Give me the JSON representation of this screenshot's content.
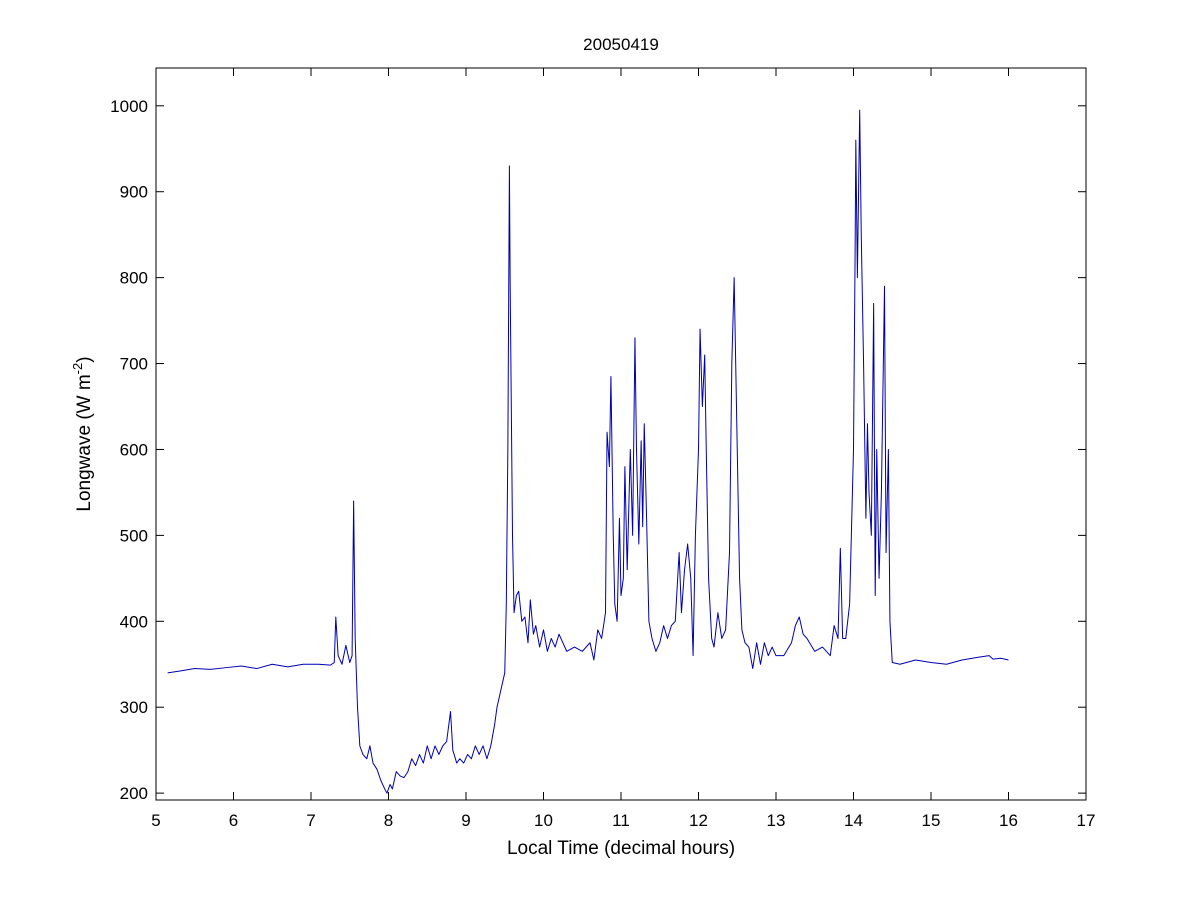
{
  "chart_data": {
    "type": "line",
    "title": "20050419",
    "xlabel": "Local Time (decimal hours)",
    "ylabel": [
      "Longwave (W m",
      "-2",
      ")"
    ],
    "x": [
      5.15,
      5.3,
      5.5,
      5.7,
      5.9,
      6.1,
      6.3,
      6.5,
      6.7,
      6.9,
      7.1,
      7.25,
      7.3,
      7.32,
      7.35,
      7.4,
      7.45,
      7.5,
      7.53,
      7.55,
      7.57,
      7.6,
      7.63,
      7.67,
      7.72,
      7.76,
      7.8,
      7.85,
      7.9,
      7.95,
      7.98,
      8.02,
      8.05,
      8.1,
      8.15,
      8.2,
      8.25,
      8.3,
      8.35,
      8.4,
      8.45,
      8.5,
      8.55,
      8.6,
      8.65,
      8.7,
      8.75,
      8.8,
      8.83,
      8.88,
      8.92,
      8.97,
      9.02,
      9.07,
      9.12,
      9.17,
      9.22,
      9.27,
      9.32,
      9.37,
      9.4,
      9.45,
      9.5,
      9.52,
      9.54,
      9.56,
      9.57,
      9.6,
      9.62,
      9.65,
      9.68,
      9.72,
      9.76,
      9.8,
      9.83,
      9.87,
      9.9,
      9.95,
      10.0,
      10.05,
      10.1,
      10.15,
      10.2,
      10.3,
      10.4,
      10.5,
      10.6,
      10.65,
      10.7,
      10.75,
      10.8,
      10.82,
      10.85,
      10.87,
      10.9,
      10.92,
      10.95,
      10.98,
      11.0,
      11.03,
      11.05,
      11.08,
      11.12,
      11.15,
      11.18,
      11.2,
      11.23,
      11.26,
      11.28,
      11.3,
      11.33,
      11.36,
      11.4,
      11.45,
      11.5,
      11.55,
      11.6,
      11.65,
      11.7,
      11.75,
      11.78,
      11.82,
      11.86,
      11.9,
      11.93,
      11.96,
      12.0,
      12.02,
      12.05,
      12.08,
      12.1,
      12.13,
      12.17,
      12.2,
      12.25,
      12.3,
      12.35,
      12.4,
      12.43,
      12.46,
      12.5,
      12.53,
      12.56,
      12.6,
      12.65,
      12.7,
      12.75,
      12.8,
      12.85,
      12.9,
      12.95,
      13.0,
      13.1,
      13.2,
      13.25,
      13.3,
      13.35,
      13.4,
      13.5,
      13.6,
      13.7,
      13.75,
      13.8,
      13.83,
      13.86,
      13.9,
      13.95,
      14.0,
      14.02,
      14.03,
      14.05,
      14.08,
      14.1,
      14.13,
      14.16,
      14.18,
      14.2,
      14.23,
      14.26,
      14.28,
      14.3,
      14.33,
      14.36,
      14.4,
      14.42,
      14.45,
      14.47,
      14.5,
      14.6,
      14.8,
      15.0,
      15.2,
      15.4,
      15.6,
      15.75,
      15.8,
      15.9,
      16.0
    ],
    "series": [
      {
        "color": "#0000b0",
        "values": [
          340,
          342,
          345,
          344,
          346,
          348,
          345,
          350,
          347,
          350,
          350,
          349,
          352,
          405,
          360,
          350,
          372,
          352,
          360,
          540,
          380,
          300,
          255,
          245,
          240,
          255,
          235,
          228,
          215,
          205,
          200,
          210,
          205,
          225,
          220,
          218,
          225,
          240,
          232,
          245,
          235,
          255,
          240,
          255,
          245,
          255,
          260,
          295,
          250,
          235,
          240,
          235,
          245,
          240,
          255,
          245,
          255,
          240,
          255,
          280,
          300,
          320,
          340,
          420,
          600,
          930,
          790,
          500,
          410,
          430,
          435,
          400,
          405,
          375,
          425,
          385,
          395,
          370,
          390,
          365,
          380,
          370,
          385,
          365,
          370,
          365,
          375,
          355,
          390,
          380,
          410,
          620,
          580,
          685,
          500,
          420,
          400,
          520,
          430,
          450,
          580,
          460,
          600,
          500,
          730,
          600,
          490,
          610,
          510,
          630,
          520,
          400,
          380,
          365,
          375,
          395,
          380,
          395,
          400,
          480,
          410,
          460,
          490,
          450,
          360,
          500,
          600,
          740,
          650,
          710,
          600,
          450,
          380,
          370,
          410,
          380,
          390,
          480,
          700,
          800,
          600,
          450,
          390,
          375,
          370,
          345,
          375,
          350,
          375,
          360,
          370,
          360,
          360,
          375,
          395,
          405,
          385,
          380,
          365,
          370,
          360,
          395,
          380,
          485,
          380,
          380,
          420,
          600,
          820,
          960,
          800,
          995,
          850,
          700,
          520,
          630,
          550,
          500,
          770,
          430,
          600,
          450,
          550,
          790,
          480,
          600,
          400,
          352,
          350,
          355,
          352,
          350,
          355,
          358,
          360,
          356,
          357,
          355
        ]
      }
    ],
    "xlim": [
      5,
      17
    ],
    "ylim": [
      192,
      1044
    ],
    "xticks": [
      5,
      6,
      7,
      8,
      9,
      10,
      11,
      12,
      13,
      14,
      15,
      16,
      17
    ],
    "yticks": [
      200,
      300,
      400,
      500,
      600,
      700,
      800,
      900,
      1000
    ],
    "grid": false
  }
}
